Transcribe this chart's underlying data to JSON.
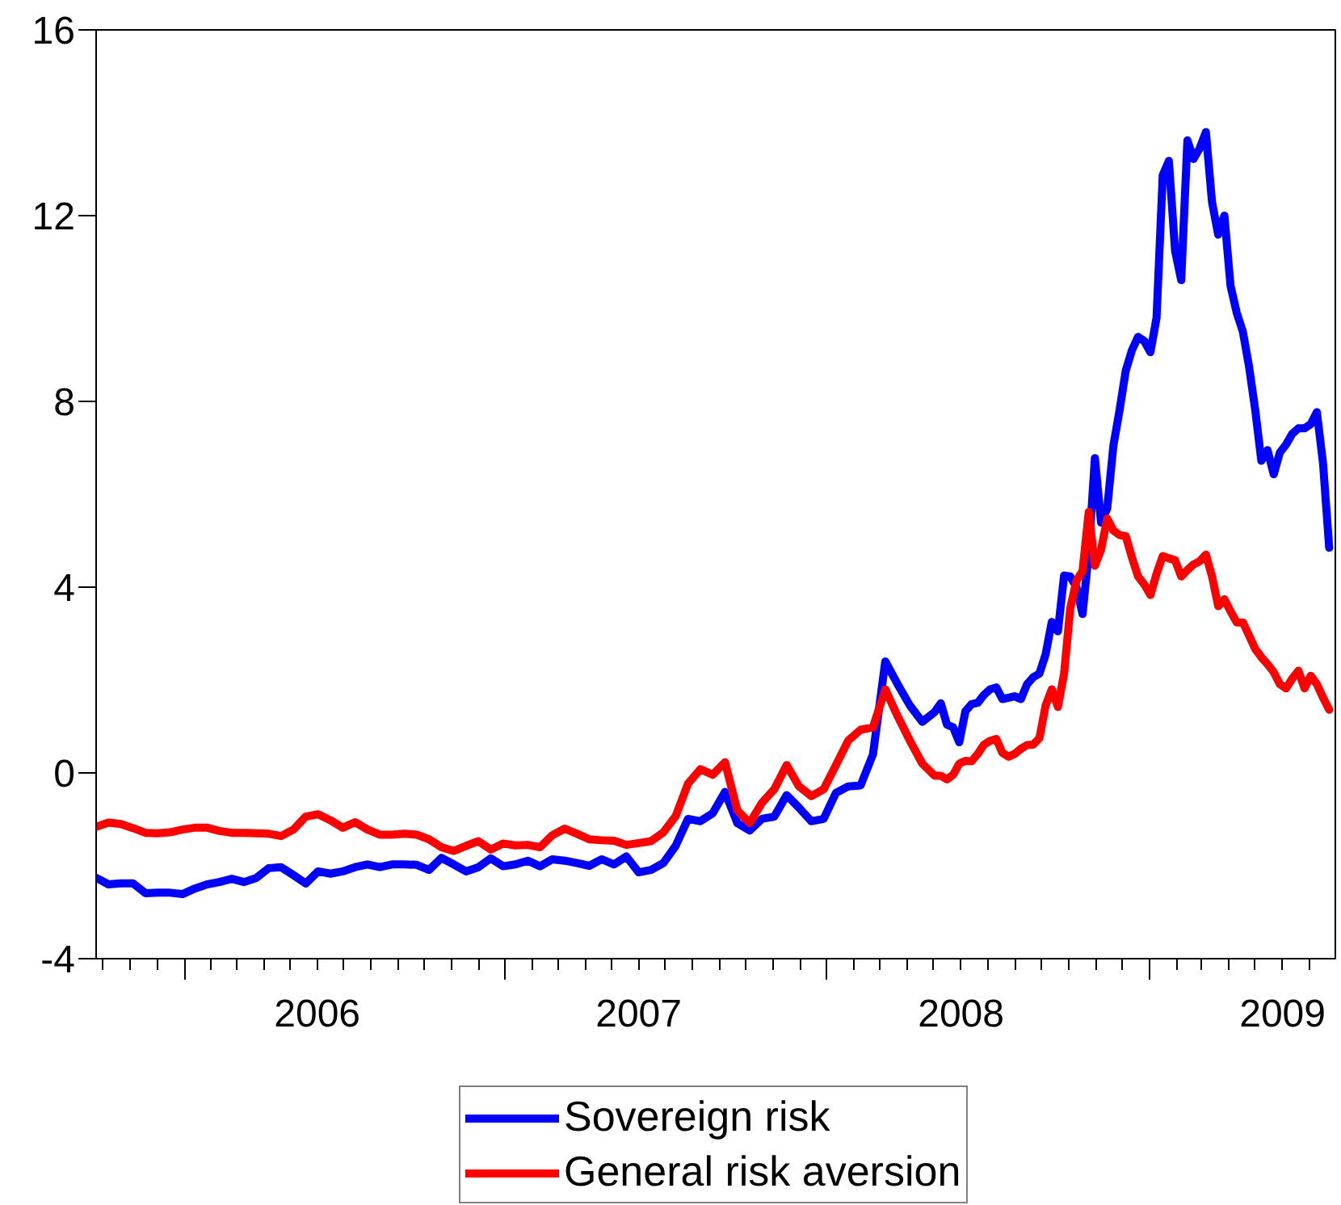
{
  "chart_data": {
    "type": "line",
    "line_style": "solid",
    "grid": false,
    "legend": "bottom",
    "xlim": [
      "2005-09-23",
      "2009-07-31"
    ],
    "xticks": [
      {
        "value": "2005-10-01",
        "label": null
      },
      {
        "value": "2005-11-01",
        "label": null
      },
      {
        "value": "2005-12-01",
        "label": null
      },
      {
        "value": "2006-01-01",
        "label": null
      },
      {
        "value": "2006-02-01",
        "label": null
      },
      {
        "value": "2006-03-01",
        "label": null
      },
      {
        "value": "2006-04-01",
        "label": null
      },
      {
        "value": "2006-05-01",
        "label": null
      },
      {
        "value": "2006-06-01",
        "label": "2006"
      },
      {
        "value": "2006-07-01",
        "label": null
      },
      {
        "value": "2006-08-01",
        "label": null
      },
      {
        "value": "2006-09-01",
        "label": null
      },
      {
        "value": "2006-10-01",
        "label": null
      },
      {
        "value": "2006-11-01",
        "label": null
      },
      {
        "value": "2006-12-01",
        "label": null
      },
      {
        "value": "2007-01-01",
        "label": null
      },
      {
        "value": "2007-02-01",
        "label": null
      },
      {
        "value": "2007-03-01",
        "label": null
      },
      {
        "value": "2007-04-01",
        "label": null
      },
      {
        "value": "2007-05-01",
        "label": null
      },
      {
        "value": "2007-06-01",
        "label": "2007"
      },
      {
        "value": "2007-07-01",
        "label": null
      },
      {
        "value": "2007-08-01",
        "label": null
      },
      {
        "value": "2007-09-01",
        "label": null
      },
      {
        "value": "2007-10-01",
        "label": null
      },
      {
        "value": "2007-11-01",
        "label": null
      },
      {
        "value": "2007-12-01",
        "label": null
      },
      {
        "value": "2008-01-01",
        "label": null
      },
      {
        "value": "2008-02-01",
        "label": null
      },
      {
        "value": "2008-03-01",
        "label": null
      },
      {
        "value": "2008-04-01",
        "label": null
      },
      {
        "value": "2008-05-01",
        "label": null
      },
      {
        "value": "2008-06-01",
        "label": "2008"
      },
      {
        "value": "2008-07-01",
        "label": null
      },
      {
        "value": "2008-08-01",
        "label": null
      },
      {
        "value": "2008-09-01",
        "label": null
      },
      {
        "value": "2008-10-01",
        "label": null
      },
      {
        "value": "2008-11-01",
        "label": null
      },
      {
        "value": "2008-12-01",
        "label": null
      },
      {
        "value": "2009-01-01",
        "label": null
      },
      {
        "value": "2009-02-01",
        "label": null
      },
      {
        "value": "2009-03-01",
        "label": null
      },
      {
        "value": "2009-04-01",
        "label": null
      },
      {
        "value": "2009-05-01",
        "label": null
      },
      {
        "value": "2009-06-01",
        "label": "2009"
      },
      {
        "value": "2009-07-01",
        "label": null
      }
    ],
    "ylim": [
      -4,
      16
    ],
    "yticks": [
      -4,
      0,
      4,
      8,
      12,
      16
    ],
    "x": [
      "2005-09-23",
      "2005-10-07",
      "2005-10-21",
      "2005-11-04",
      "2005-11-18",
      "2005-12-02",
      "2005-12-16",
      "2005-12-30",
      "2006-01-13",
      "2006-01-27",
      "2006-02-10",
      "2006-02-24",
      "2006-03-10",
      "2006-03-24",
      "2006-04-07",
      "2006-04-21",
      "2006-05-05",
      "2006-05-19",
      "2006-06-02",
      "2006-06-16",
      "2006-06-30",
      "2006-07-14",
      "2006-07-28",
      "2006-08-11",
      "2006-08-25",
      "2006-09-08",
      "2006-09-22",
      "2006-10-06",
      "2006-10-20",
      "2006-11-03",
      "2006-11-17",
      "2006-12-01",
      "2006-12-15",
      "2006-12-29",
      "2007-01-12",
      "2007-01-26",
      "2007-02-09",
      "2007-02-23",
      "2007-03-09",
      "2007-03-23",
      "2007-04-06",
      "2007-04-20",
      "2007-05-04",
      "2007-05-18",
      "2007-06-01",
      "2007-06-15",
      "2007-06-29",
      "2007-07-13",
      "2007-07-27",
      "2007-08-10",
      "2007-08-24",
      "2007-09-07",
      "2007-09-21",
      "2007-10-05",
      "2007-10-19",
      "2007-11-02",
      "2007-11-16",
      "2007-11-30",
      "2007-12-14",
      "2007-12-28",
      "2008-01-11",
      "2008-01-25",
      "2008-02-08",
      "2008-02-22",
      "2008-03-07",
      "2008-03-21",
      "2008-04-04",
      "2008-04-18",
      "2008-05-02",
      "2008-05-09",
      "2008-05-16",
      "2008-05-23",
      "2008-05-30",
      "2008-06-06",
      "2008-06-13",
      "2008-06-20",
      "2008-06-27",
      "2008-07-04",
      "2008-07-11",
      "2008-07-18",
      "2008-07-25",
      "2008-08-01",
      "2008-08-08",
      "2008-08-15",
      "2008-08-22",
      "2008-08-29",
      "2008-09-05",
      "2008-09-12",
      "2008-09-19",
      "2008-09-26",
      "2008-10-03",
      "2008-10-10",
      "2008-10-17",
      "2008-10-24",
      "2008-10-31",
      "2008-11-07",
      "2008-11-14",
      "2008-11-21",
      "2008-11-28",
      "2008-12-05",
      "2008-12-12",
      "2008-12-19",
      "2008-12-26",
      "2009-01-02",
      "2009-01-09",
      "2009-01-16",
      "2009-01-23",
      "2009-01-30",
      "2009-02-06",
      "2009-02-13",
      "2009-02-20",
      "2009-02-27",
      "2009-03-06",
      "2009-03-13",
      "2009-03-20",
      "2009-03-27",
      "2009-04-03",
      "2009-04-10",
      "2009-04-17",
      "2009-04-24",
      "2009-05-01",
      "2009-05-08",
      "2009-05-15",
      "2009-05-22",
      "2009-05-29",
      "2009-06-05",
      "2009-06-12",
      "2009-06-19",
      "2009-06-26",
      "2009-07-03",
      "2009-07-10",
      "2009-07-17",
      "2009-07-24"
    ],
    "series": [
      {
        "name": "Sovereign risk",
        "color": "#0000ff",
        "values": [
          -2.26,
          -2.4,
          -2.38,
          -2.38,
          -2.59,
          -2.58,
          -2.58,
          -2.61,
          -2.49,
          -2.4,
          -2.35,
          -2.28,
          -2.35,
          -2.26,
          -2.05,
          -2.03,
          -2.2,
          -2.38,
          -2.12,
          -2.17,
          -2.12,
          -2.03,
          -1.97,
          -2.03,
          -1.97,
          -1.97,
          -1.98,
          -2.09,
          -1.83,
          -1.97,
          -2.12,
          -2.03,
          -1.84,
          -2.01,
          -1.97,
          -1.89,
          -2.01,
          -1.86,
          -1.89,
          -1.94,
          -2.0,
          -1.86,
          -1.97,
          -1.8,
          -2.14,
          -2.09,
          -1.94,
          -1.57,
          -0.99,
          -1.04,
          -0.87,
          -0.41,
          -1.08,
          -1.24,
          -0.99,
          -0.94,
          -0.48,
          -0.75,
          -1.04,
          -0.99,
          -0.43,
          -0.29,
          -0.27,
          0.4,
          2.4,
          1.91,
          1.45,
          1.1,
          1.31,
          1.5,
          1.04,
          0.98,
          0.66,
          1.33,
          1.48,
          1.51,
          1.68,
          1.8,
          1.84,
          1.59,
          1.62,
          1.65,
          1.59,
          1.91,
          2.06,
          2.14,
          2.55,
          3.25,
          3.05,
          4.25,
          4.23,
          4.0,
          3.42,
          4.75,
          6.78,
          5.39,
          5.7,
          7.05,
          7.81,
          8.66,
          9.1,
          9.39,
          9.3,
          9.06,
          9.8,
          12.87,
          13.18,
          11.25,
          10.61,
          13.62,
          13.22,
          13.45,
          13.8,
          12.29,
          11.59,
          12.0,
          10.49,
          9.91,
          9.5,
          8.75,
          7.82,
          6.72,
          6.95,
          6.43,
          6.9,
          7.07,
          7.3,
          7.42,
          7.42,
          7.51,
          7.77,
          6.67,
          4.85
        ]
      },
      {
        "name": "General risk aversion",
        "color": "#ff0000",
        "values": [
          -1.16,
          -1.07,
          -1.1,
          -1.19,
          -1.29,
          -1.3,
          -1.28,
          -1.22,
          -1.18,
          -1.18,
          -1.25,
          -1.29,
          -1.29,
          -1.3,
          -1.31,
          -1.36,
          -1.22,
          -0.94,
          -0.89,
          -1.02,
          -1.18,
          -1.06,
          -1.22,
          -1.33,
          -1.33,
          -1.31,
          -1.33,
          -1.43,
          -1.6,
          -1.68,
          -1.57,
          -1.47,
          -1.65,
          -1.52,
          -1.56,
          -1.55,
          -1.6,
          -1.34,
          -1.2,
          -1.31,
          -1.43,
          -1.45,
          -1.46,
          -1.55,
          -1.51,
          -1.47,
          -1.28,
          -0.93,
          -0.23,
          0.08,
          -0.04,
          0.23,
          -0.81,
          -1.08,
          -0.64,
          -0.35,
          0.17,
          -0.29,
          -0.5,
          -0.35,
          0.17,
          0.7,
          0.93,
          0.98,
          1.8,
          1.22,
          0.69,
          0.2,
          -0.06,
          -0.06,
          -0.14,
          -0.04,
          0.2,
          0.26,
          0.25,
          0.41,
          0.61,
          0.69,
          0.73,
          0.43,
          0.35,
          0.41,
          0.52,
          0.6,
          0.61,
          0.75,
          1.45,
          1.8,
          1.42,
          2.14,
          3.54,
          4.14,
          4.35,
          5.62,
          4.46,
          4.81,
          5.48,
          5.22,
          5.12,
          5.1,
          4.64,
          4.23,
          4.06,
          3.83,
          4.29,
          4.67,
          4.62,
          4.58,
          4.23,
          4.37,
          4.49,
          4.56,
          4.7,
          4.23,
          3.59,
          3.74,
          3.48,
          3.24,
          3.24,
          2.96,
          2.67,
          2.49,
          2.34,
          2.17,
          1.91,
          1.82,
          2.03,
          2.2,
          1.82,
          2.09,
          1.91,
          1.62,
          1.36
        ]
      }
    ]
  }
}
